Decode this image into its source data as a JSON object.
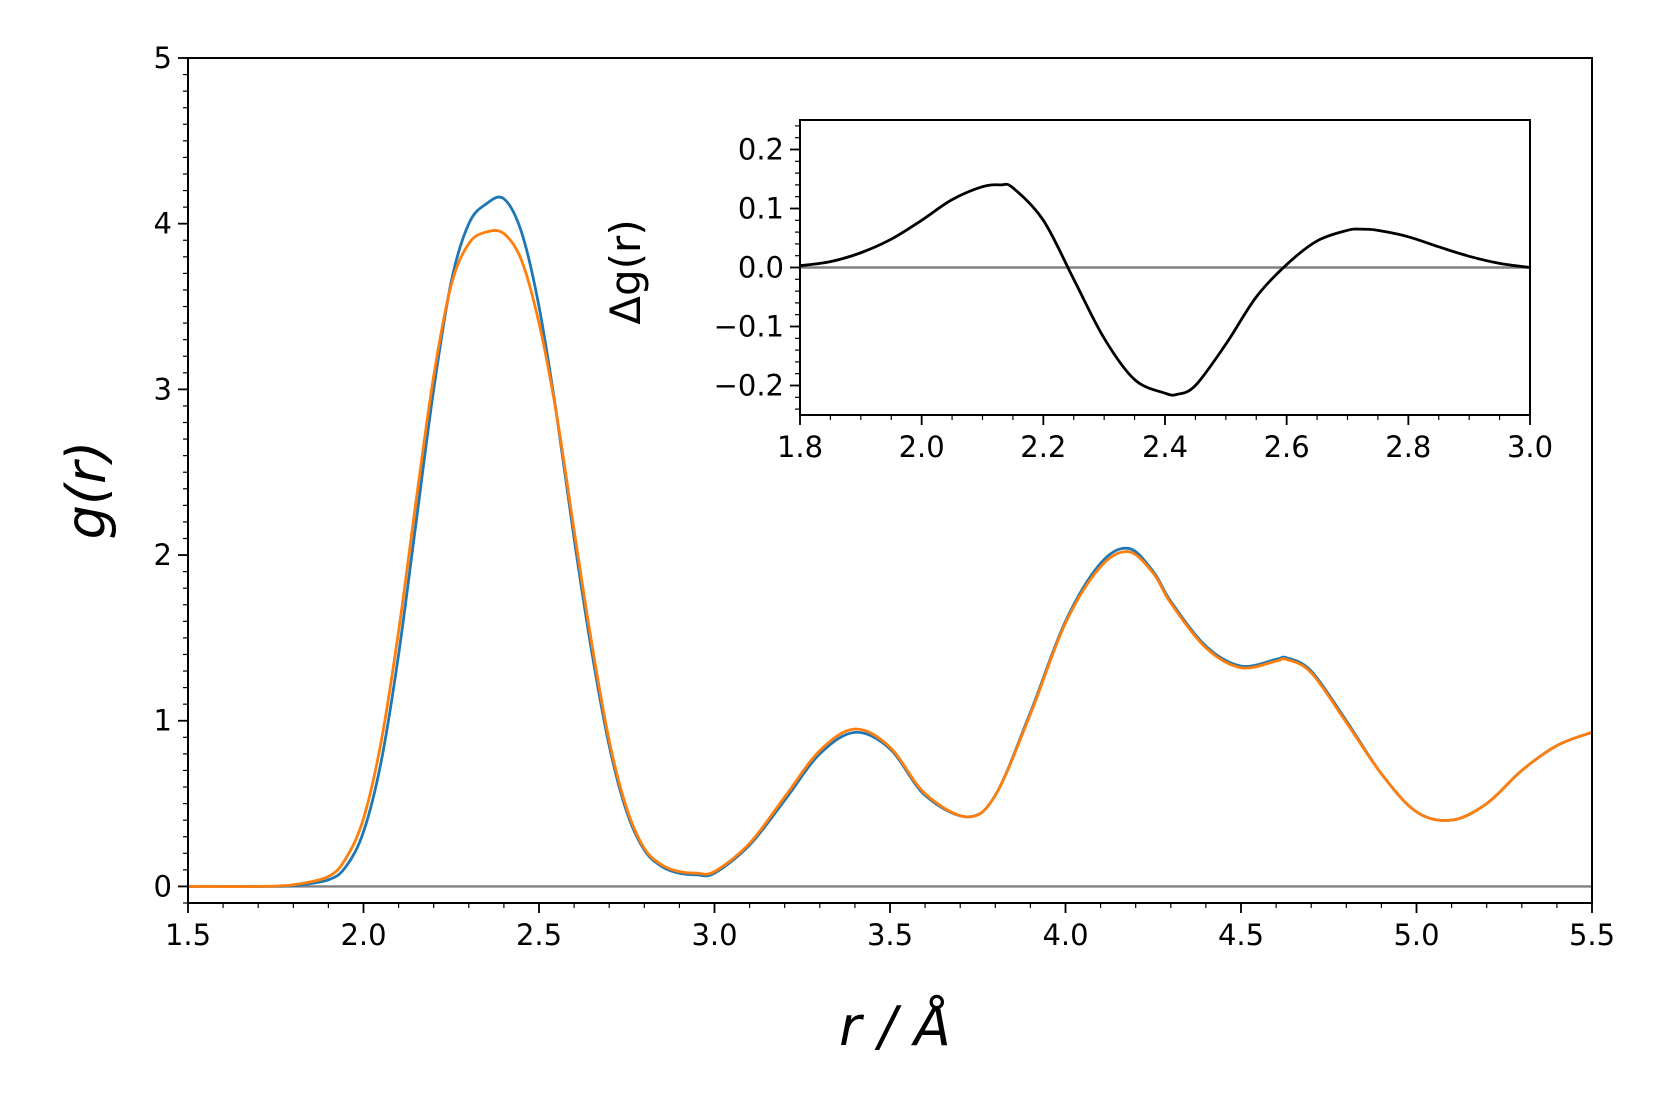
{
  "chart_data": [
    {
      "type": "line",
      "xlabel": "r / Å",
      "ylabel": "g(r)",
      "xlim": [
        1.5,
        5.5
      ],
      "ylim": [
        -0.1,
        5
      ],
      "xticks": [
        1.5,
        2.0,
        2.5,
        3.0,
        3.5,
        4.0,
        4.5,
        5.0,
        5.5
      ],
      "xtick_labels": [
        "1.5",
        "2.0",
        "2.5",
        "3.0",
        "3.5",
        "4.0",
        "4.5",
        "5.0",
        "5.5"
      ],
      "yticks": [
        0,
        1,
        2,
        3,
        4,
        5
      ],
      "ytick_labels": [
        "0",
        "1",
        "2",
        "3",
        "4",
        "5"
      ],
      "grid": false,
      "reference_line": {
        "y": 0,
        "color": "#808080"
      },
      "series": [
        {
          "color": "#1f77b4",
          "x": [
            1.5,
            1.7,
            1.8,
            1.9,
            1.95,
            2.0,
            2.05,
            2.1,
            2.15,
            2.2,
            2.25,
            2.3,
            2.35,
            2.4,
            2.45,
            2.5,
            2.55,
            2.6,
            2.65,
            2.7,
            2.75,
            2.8,
            2.85,
            2.9,
            2.95,
            3.0,
            3.1,
            3.2,
            3.3,
            3.4,
            3.5,
            3.6,
            3.72,
            3.8,
            3.9,
            4.0,
            4.1,
            4.18,
            4.25,
            4.3,
            4.4,
            4.5,
            4.6,
            4.63,
            4.7,
            4.8,
            4.9,
            5.0,
            5.1,
            5.2,
            5.3,
            5.4,
            5.5
          ],
          "y": [
            0.0,
            0.0,
            0.005,
            0.04,
            0.12,
            0.33,
            0.75,
            1.4,
            2.2,
            3.0,
            3.65,
            4.0,
            4.12,
            4.15,
            3.95,
            3.5,
            2.85,
            2.1,
            1.42,
            0.85,
            0.45,
            0.22,
            0.12,
            0.08,
            0.07,
            0.08,
            0.25,
            0.52,
            0.8,
            0.93,
            0.83,
            0.55,
            0.42,
            0.55,
            1.05,
            1.6,
            1.95,
            2.04,
            1.9,
            1.72,
            1.45,
            1.33,
            1.37,
            1.38,
            1.3,
            1.0,
            0.68,
            0.45,
            0.4,
            0.5,
            0.7,
            0.85,
            0.93
          ]
        },
        {
          "color": "#ff7f0e",
          "x": [
            1.5,
            1.7,
            1.8,
            1.9,
            1.95,
            2.0,
            2.05,
            2.1,
            2.15,
            2.2,
            2.25,
            2.3,
            2.35,
            2.4,
            2.45,
            2.5,
            2.55,
            2.6,
            2.65,
            2.7,
            2.75,
            2.8,
            2.85,
            2.9,
            2.95,
            3.0,
            3.1,
            3.2,
            3.3,
            3.4,
            3.5,
            3.6,
            3.72,
            3.8,
            3.9,
            4.0,
            4.1,
            4.18,
            4.25,
            4.3,
            4.4,
            4.5,
            4.6,
            4.63,
            4.7,
            4.8,
            4.9,
            5.0,
            5.1,
            5.2,
            5.3,
            5.4,
            5.5
          ],
          "y": [
            0.0,
            0.0,
            0.01,
            0.06,
            0.17,
            0.41,
            0.87,
            1.54,
            2.33,
            3.08,
            3.63,
            3.88,
            3.95,
            3.94,
            3.78,
            3.4,
            2.85,
            2.15,
            1.47,
            0.88,
            0.47,
            0.23,
            0.13,
            0.09,
            0.08,
            0.09,
            0.26,
            0.54,
            0.82,
            0.95,
            0.84,
            0.56,
            0.42,
            0.55,
            1.04,
            1.59,
            1.93,
            2.02,
            1.89,
            1.71,
            1.44,
            1.32,
            1.36,
            1.37,
            1.29,
            0.99,
            0.68,
            0.45,
            0.4,
            0.5,
            0.7,
            0.85,
            0.93
          ]
        }
      ]
    },
    {
      "type": "line",
      "xlabel": "",
      "ylabel": "Δg(r)",
      "xlim": [
        1.8,
        3.0
      ],
      "ylim": [
        -0.25,
        0.25
      ],
      "xticks": [
        1.8,
        2.0,
        2.2,
        2.4,
        2.6,
        2.8,
        3.0
      ],
      "xtick_labels": [
        "1.8",
        "2.0",
        "2.2",
        "2.4",
        "2.6",
        "2.8",
        "3.0"
      ],
      "yticks": [
        -0.2,
        -0.1,
        0.0,
        0.1,
        0.2
      ],
      "ytick_labels": [
        "−0.2",
        "−0.1",
        "0.0",
        "0.1",
        "0.2"
      ],
      "grid": false,
      "reference_line": {
        "y": 0,
        "color": "#808080"
      },
      "series": [
        {
          "color": "#000000",
          "x": [
            1.8,
            1.85,
            1.9,
            1.95,
            2.0,
            2.05,
            2.1,
            2.13,
            2.15,
            2.2,
            2.25,
            2.3,
            2.35,
            2.4,
            2.42,
            2.45,
            2.5,
            2.55,
            2.6,
            2.65,
            2.7,
            2.72,
            2.75,
            2.8,
            2.85,
            2.9,
            2.95,
            3.0
          ],
          "y": [
            0.003,
            0.01,
            0.025,
            0.048,
            0.08,
            0.115,
            0.137,
            0.14,
            0.135,
            0.08,
            -0.02,
            -0.12,
            -0.19,
            -0.213,
            -0.215,
            -0.2,
            -0.13,
            -0.05,
            0.005,
            0.045,
            0.063,
            0.065,
            0.063,
            0.052,
            0.035,
            0.019,
            0.007,
            0.0
          ]
        }
      ]
    }
  ]
}
